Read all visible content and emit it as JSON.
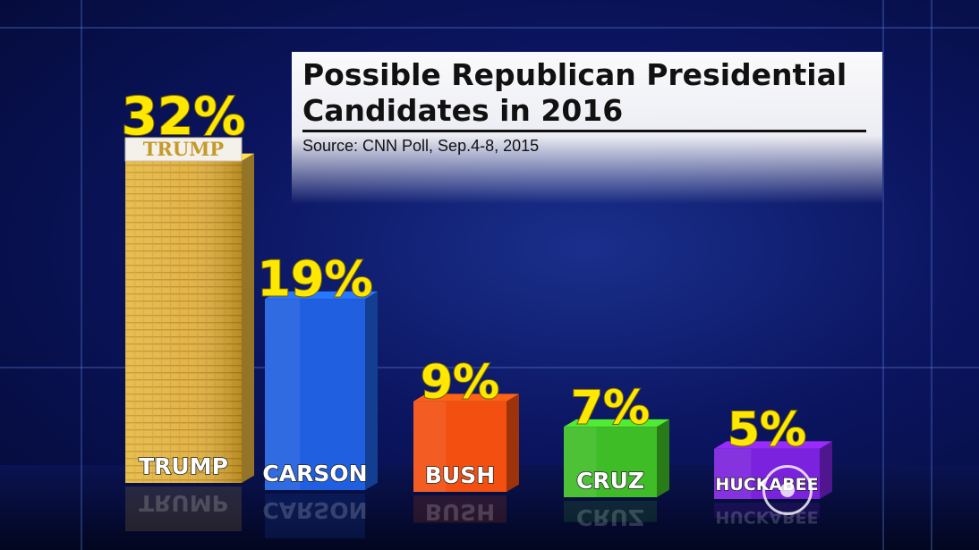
{
  "chart_data": {
    "type": "bar",
    "title_line1": "Possible Republican Presidential",
    "title_line2": "Candidates in 2016",
    "source": "Source: CNN Poll, Sep.4-8, 2015",
    "categories": [
      "TRUMP",
      "CARSON",
      "BUSH",
      "CRUZ",
      "HUCKABEE"
    ],
    "values": [
      32,
      19,
      9,
      7,
      5
    ],
    "value_labels": [
      "32%",
      "19%",
      "9%",
      "7%",
      "5%"
    ],
    "bar_colors": [
      "#e3b33a",
      "#1f5fe0",
      "#f24f10",
      "#3fbd27",
      "#7a22dd"
    ],
    "top_sign": "TRUMP",
    "ylim": [
      0,
      32
    ]
  }
}
